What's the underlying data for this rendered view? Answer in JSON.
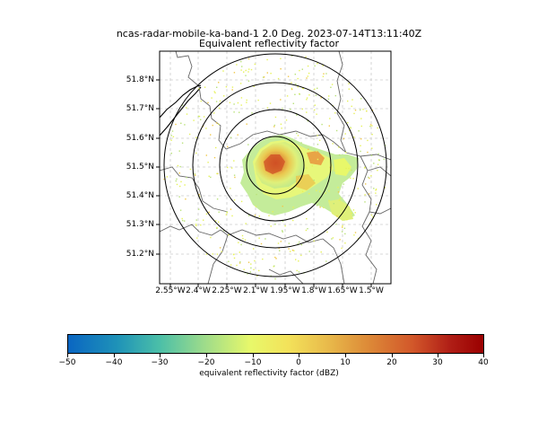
{
  "title_line1": "ncas-radar-mobile-ka-band-1 2.0 Deg. 2023-07-14T13:11:40Z",
  "title_line2": "Equivalent reflectivity factor",
  "lat_ticks": [
    "51.8°N",
    "51.7°N",
    "51.6°N",
    "51.5°N",
    "51.4°N",
    "51.3°N",
    "51.2°N"
  ],
  "lon_ticks": [
    "2.55°W",
    "2.4°W",
    "2.25°W",
    "2.1°W",
    "1.95°W",
    "1.8°W",
    "1.65°W",
    "1.5°W"
  ],
  "colorbar": {
    "ticks": [
      "−50",
      "−40",
      "−30",
      "−20",
      "−10",
      "0",
      "10",
      "20",
      "30",
      "40"
    ],
    "label": "equivalent reflectivity factor (dBZ)",
    "min": -50,
    "max": 40,
    "colors": [
      "#0a66c2",
      "#4bbfa8",
      "#e8f86a",
      "#dd8b38",
      "#9a0000"
    ]
  },
  "range_rings_count": 4
}
